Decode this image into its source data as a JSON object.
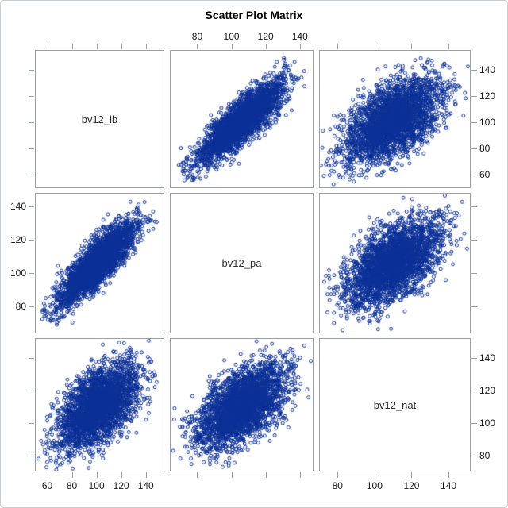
{
  "figure": {
    "background": "#ffffff",
    "border_color": "#c9ced2",
    "cell_border_color": "#9b9fa3"
  },
  "chart_data": {
    "type": "scatter",
    "subtype": "scatter-plot-matrix",
    "title": "Scatter Plot Matrix",
    "variables": [
      "bv12_ib",
      "bv12_pa",
      "bv12_nat"
    ],
    "axes": {
      "bv12_ib": {
        "range": [
          50,
          155
        ],
        "ticks": [
          60,
          80,
          100,
          120,
          140
        ]
      },
      "bv12_pa": {
        "range": [
          64,
          148
        ],
        "ticks": [
          80,
          100,
          120,
          140
        ]
      },
      "bv12_nat": {
        "range": [
          70,
          152
        ],
        "ticks": [
          80,
          100,
          120,
          140
        ]
      }
    },
    "axis_label_edges": {
      "top": [
        "bv12_pa"
      ],
      "bottom": [
        "bv12_ib",
        "bv12_nat"
      ],
      "left": [
        "bv12_pa"
      ],
      "right": [
        "bv12_ib",
        "bv12_nat"
      ]
    },
    "distributions": {
      "bv12_ib": {
        "mean": 101,
        "sd": 16
      },
      "bv12_pa": {
        "mean": 106,
        "sd": 13
      },
      "bv12_nat": {
        "mean": 110,
        "sd": 13
      }
    },
    "correlations": {
      "bv12_ib~bv12_pa": 0.85,
      "bv12_ib~bv12_nat": 0.55,
      "bv12_pa~bv12_nat": 0.55
    },
    "n_points_per_panel": 3000,
    "marker": {
      "shape": "open-circle",
      "color": "#0A2F96",
      "radius_px": 2
    },
    "grid": false,
    "legend": false,
    "seed": 42
  }
}
